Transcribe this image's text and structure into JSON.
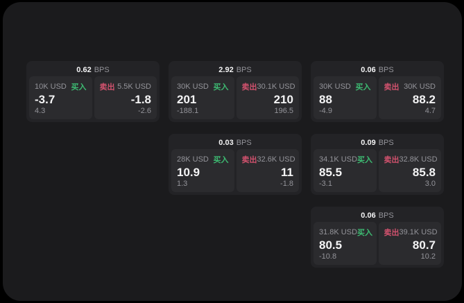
{
  "theme": {
    "background": "#000000",
    "panel": "#1b1b1d",
    "card": "#232326",
    "tile": "#2b2b2e",
    "text_primary": "#f4f4f5",
    "text_muted": "#94949a",
    "buy_green": "#3dbb72",
    "sell_red": "#d2526e"
  },
  "labels": {
    "bps_unit": "BPS",
    "buy": "买入",
    "sell": "卖出"
  },
  "cards": [
    {
      "row": 1,
      "col": 1,
      "bps": "0.62",
      "buy": {
        "amount": "10K USD",
        "price": "-3.7",
        "change": "4.3"
      },
      "sell": {
        "amount": "5.5K USD",
        "price": "-1.8",
        "change": "-2.6"
      }
    },
    {
      "row": 1,
      "col": 2,
      "bps": "2.92",
      "buy": {
        "amount": "30K USD",
        "price": "201",
        "change": "-188.1"
      },
      "sell": {
        "amount": "30.1K USD",
        "price": "210",
        "change": "196.5"
      }
    },
    {
      "row": 1,
      "col": 3,
      "bps": "0.06",
      "buy": {
        "amount": "30K USD",
        "price": "88",
        "change": "-4.9"
      },
      "sell": {
        "amount": "30K USD",
        "price": "88.2",
        "change": "4.7"
      }
    },
    {
      "row": 2,
      "col": 2,
      "bps": "0.03",
      "buy": {
        "amount": "28K USD",
        "price": "10.9",
        "change": "1.3"
      },
      "sell": {
        "amount": "32.6K USD",
        "price": "11",
        "change": "-1.8"
      }
    },
    {
      "row": 2,
      "col": 3,
      "bps": "0.09",
      "buy": {
        "amount": "34.1K USD",
        "price": "85.5",
        "change": "-3.1"
      },
      "sell": {
        "amount": "32.8K USD",
        "price": "85.8",
        "change": "3.0"
      }
    },
    {
      "row": 3,
      "col": 3,
      "bps": "0.06",
      "buy": {
        "amount": "31.8K USD",
        "price": "80.5",
        "change": "-10.8"
      },
      "sell": {
        "amount": "39.1K USD",
        "price": "80.7",
        "change": "10.2"
      }
    }
  ]
}
